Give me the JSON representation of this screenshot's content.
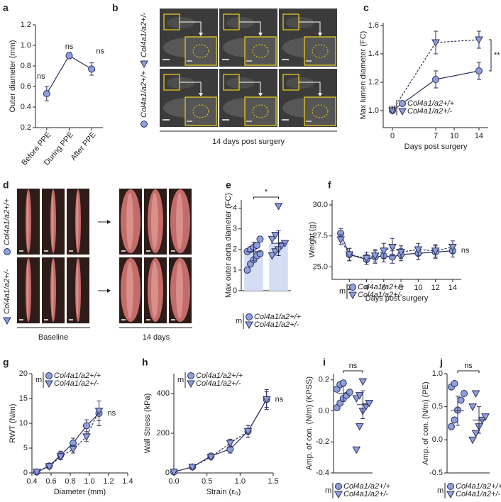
{
  "chart_data": [
    {
      "type": "line",
      "panel": "a",
      "ylabel": "Outer diameter (mm)",
      "categories": [
        "Before PPE",
        "During PPE",
        "After PPE"
      ],
      "series": [
        {
          "name": "Outer diameter",
          "color": "#8d9fdc",
          "marker": "circle",
          "dash": false,
          "values": [
            0.53,
            0.9,
            0.77
          ],
          "errors": [
            0.07,
            0.03,
            0.06
          ]
        }
      ],
      "ylim": [
        0.2,
        1.2
      ],
      "yticks": [
        0.2,
        0.4,
        0.6,
        0.8,
        {
          "value": 1,
          "label": "1.0"
        },
        1.2
      ],
      "annotations": [
        "ns",
        "ns",
        "ns"
      ]
    },
    {
      "type": "line",
      "panel": "c",
      "ylabel": "Max lumen diameter (FC)",
      "xlabel": "Days post surgery",
      "x": [
        0,
        7,
        14
      ],
      "xlim": [
        -1.5,
        15.5
      ],
      "xticks": [
        0,
        7,
        10,
        14
      ],
      "series": [
        {
          "name": "Col4a1/a2+/+",
          "color": "#8d9fdc",
          "marker": "circle",
          "dash": false,
          "values": [
            1.0,
            1.22,
            1.28
          ],
          "errors": [
            0.01,
            0.06,
            0.06
          ]
        },
        {
          "name": "Col4a1/a2+/-",
          "color": "#8d9fdc",
          "marker": "triangle",
          "dash": true,
          "values": [
            1.0,
            1.48,
            1.5
          ],
          "errors": [
            0.01,
            0.08,
            0.06
          ]
        }
      ],
      "ylim": [
        0.88,
        1.62
      ],
      "yticks": [
        {
          "value": 1,
          "label": "1.0"
        },
        1.2,
        1.4,
        1.6
      ],
      "legend_label": "m",
      "legend": "lower right",
      "annotations": [
        "**"
      ]
    },
    {
      "type": "strip",
      "panel": "e",
      "ylabel": "Max  outer aorta diameter (FC)",
      "bars": true,
      "bar_color": "#d3def5",
      "series": [
        {
          "name": "Col4a1/a2+/+",
          "color": "#8d9fdc",
          "marker": "circle",
          "values": [
            1.0,
            1.3,
            1.5,
            1.7,
            1.8,
            1.9,
            2.0,
            2.1,
            2.2,
            2.5
          ],
          "mean": 1.9,
          "error": 0.45
        },
        {
          "name": "Col4a1/a2+/-",
          "color": "#8d9fdc",
          "marker": "triangle",
          "values": [
            1.7,
            1.9,
            2.0,
            2.2,
            2.3,
            2.5,
            2.7,
            4.1
          ],
          "mean": 2.3,
          "error": 0.6
        }
      ],
      "ylim": [
        0,
        4.4
      ],
      "yticks": [
        0,
        1,
        2,
        3,
        4
      ],
      "legend_label": "m",
      "legend": "bottom",
      "annotations": [
        "*"
      ]
    },
    {
      "type": "line",
      "panel": "f",
      "ylabel": "Weight (g)",
      "xlabel": "Days post surgery",
      "x": [
        1,
        2,
        4,
        5,
        6,
        7,
        8,
        10,
        12,
        14
      ],
      "xlim": [
        0,
        15
      ],
      "xticks": [
        2,
        4,
        6,
        8,
        10,
        12,
        14
      ],
      "series": [
        {
          "name": "Col4a1/a2+/+",
          "color": "#8d9fdc",
          "marker": "circle",
          "dash": false,
          "values": [
            27.7,
            26.0,
            25.6,
            25.8,
            25.9,
            25.8,
            26.0,
            26.1,
            26.2,
            26.3
          ],
          "errors": [
            0.4,
            0.5,
            0.4,
            0.5,
            0.5,
            0.5,
            0.5,
            0.5,
            0.5,
            0.5
          ]
        },
        {
          "name": "Col4a1/a2+/-",
          "color": "#8d9fdc",
          "marker": "triangle",
          "dash": true,
          "values": [
            27.2,
            26.0,
            25.7,
            25.9,
            26.3,
            26.6,
            26.2,
            26.4,
            26.3,
            26.6
          ],
          "errors": [
            0.4,
            0.5,
            0.5,
            0.5,
            0.6,
            0.7,
            0.5,
            0.5,
            0.5,
            0.5
          ]
        }
      ],
      "ylim": [
        24,
        30.4
      ],
      "yticks": [
        {
          "value": 25,
          "label": "25.0"
        },
        27.5,
        {
          "value": 30,
          "label": "30.0"
        }
      ],
      "legend_label": "m",
      "legend": "bottom",
      "annotations": [
        "ns"
      ]
    },
    {
      "type": "line",
      "panel": "g",
      "ylabel": "RWT (N/m)",
      "xlabel": "Diameter (mm)",
      "x": [
        0.45,
        0.58,
        0.7,
        0.83,
        0.97,
        1.1
      ],
      "xlim": [
        0.4,
        1.4
      ],
      "xticks": [
        0.4,
        0.6,
        0.8,
        {
          "value": 1,
          "label": "1.0"
        },
        1.2,
        1.4
      ],
      "series": [
        {
          "name": "Col4a1/a2+/+",
          "color": "#8d9fdc",
          "marker": "circle",
          "dash": false,
          "values": [
            0.2,
            1.4,
            3.6,
            6.0,
            9.5,
            12.0
          ],
          "errors": [
            0.2,
            0.4,
            0.8,
            1.0,
            1.2,
            2.5
          ]
        },
        {
          "name": "Col4a1/a2+/-",
          "color": "#8d9fdc",
          "marker": "triangle",
          "dash": true,
          "values": [
            0.2,
            1.3,
            3.3,
            4.8,
            7.3,
            12.5
          ],
          "errors": [
            0.2,
            0.4,
            0.6,
            0.8,
            1.0,
            2.0
          ]
        }
      ],
      "ylim": [
        0,
        20
      ],
      "yticks": [
        0,
        5,
        10,
        15,
        20
      ],
      "legend_label": "m",
      "legend": "upper left",
      "annotations": [
        "ns"
      ]
    },
    {
      "type": "line",
      "panel": "h",
      "ylabel": "Wall Stress (kPa)",
      "xlabel": "Strain (ε₀)",
      "x": [
        0,
        0.28,
        0.56,
        0.85,
        1.12,
        1.4
      ],
      "xlim": [
        0,
        1.5
      ],
      "xticks": [
        {
          "value": 0,
          "label": "0.0"
        },
        0.5,
        {
          "value": 1,
          "label": "1.0"
        },
        1.5
      ],
      "series": [
        {
          "name": "Col4a1/a2+/+",
          "color": "#8d9fdc",
          "marker": "circle",
          "dash": false,
          "values": [
            5,
            30,
            85,
            120,
            210,
            370
          ],
          "errors": [
            3,
            8,
            12,
            20,
            30,
            50
          ]
        },
        {
          "name": "Col4a1/a2+/-",
          "color": "#8d9fdc",
          "marker": "triangle",
          "dash": true,
          "values": [
            5,
            30,
            80,
            150,
            210,
            370
          ],
          "errors": [
            3,
            8,
            12,
            20,
            30,
            40
          ]
        }
      ],
      "ylim": [
        0,
        500
      ],
      "yticks": [
        0,
        200,
        400
      ],
      "legend_label": "m",
      "legend": "upper left",
      "annotations": [
        "ns"
      ]
    },
    {
      "type": "strip",
      "panel": "i",
      "ylabel": "Amp. of con. (N/m) (KPSS)",
      "bars": false,
      "series": [
        {
          "name": "Col4a1/a2+/+",
          "color": "#8d9fdc",
          "marker": "circle",
          "values": [
            0.02,
            0.05,
            0.08,
            0.1,
            0.12,
            0.14,
            0.17,
            0.18
          ],
          "mean": 0.11,
          "error": 0.05
        },
        {
          "name": "Col4a1/a2+/-",
          "color": "#8d9fdc",
          "marker": "triangle",
          "values": [
            -0.25,
            -0.1,
            0.0,
            0.03,
            0.05,
            0.08,
            0.1,
            0.19
          ],
          "mean": 0.04,
          "error": 0.09
        }
      ],
      "ylim": [
        -0.4,
        0.24
      ],
      "yticks": [
        0.2,
        {
          "value": 0,
          "label": "0.0"
        },
        -0.2,
        -0.4
      ],
      "legend_label": "m",
      "legend": "bottom",
      "annotations": [
        "ns"
      ]
    },
    {
      "type": "strip",
      "panel": "j",
      "ylabel": "Amp. of con. (N/m) (PE)",
      "bars": false,
      "series": [
        {
          "name": "Col4a1/a2+/+",
          "color": "#8d9fdc",
          "marker": "circle",
          "values": [
            0.2,
            0.3,
            0.45,
            0.6,
            0.7,
            0.8,
            0.85
          ],
          "mean": 0.44,
          "error": 0.22
        },
        {
          "name": "Col4a1/a2+/-",
          "color": "#8d9fdc",
          "marker": "triangle",
          "values": [
            0.0,
            0.1,
            0.2,
            0.3,
            0.35,
            0.5,
            0.7
          ],
          "mean": 0.3,
          "error": 0.2
        }
      ],
      "ylim": [
        -0.5,
        1.0
      ],
      "yticks": [
        {
          "value": 1,
          "label": "1.0"
        },
        0.5,
        {
          "value": 0,
          "label": "0.0"
        },
        -0.5
      ],
      "legend_label": "m",
      "legend": "bottom",
      "annotations": [
        "ns"
      ]
    }
  ],
  "images": [
    {
      "panel": "b",
      "rows": [
        "Col4a1/a2+/-",
        "Col4a1/a2+/+"
      ],
      "row_markers": [
        "triangle",
        "circle"
      ],
      "caption": "14 days post surgery"
    },
    {
      "panel": "d",
      "rows": [
        "Col4a1/a2+/+",
        "Col4a1/a2+/-"
      ],
      "row_markers": [
        "circle",
        "triangle"
      ],
      "captions": [
        "Baseline",
        "14 days"
      ]
    }
  ]
}
